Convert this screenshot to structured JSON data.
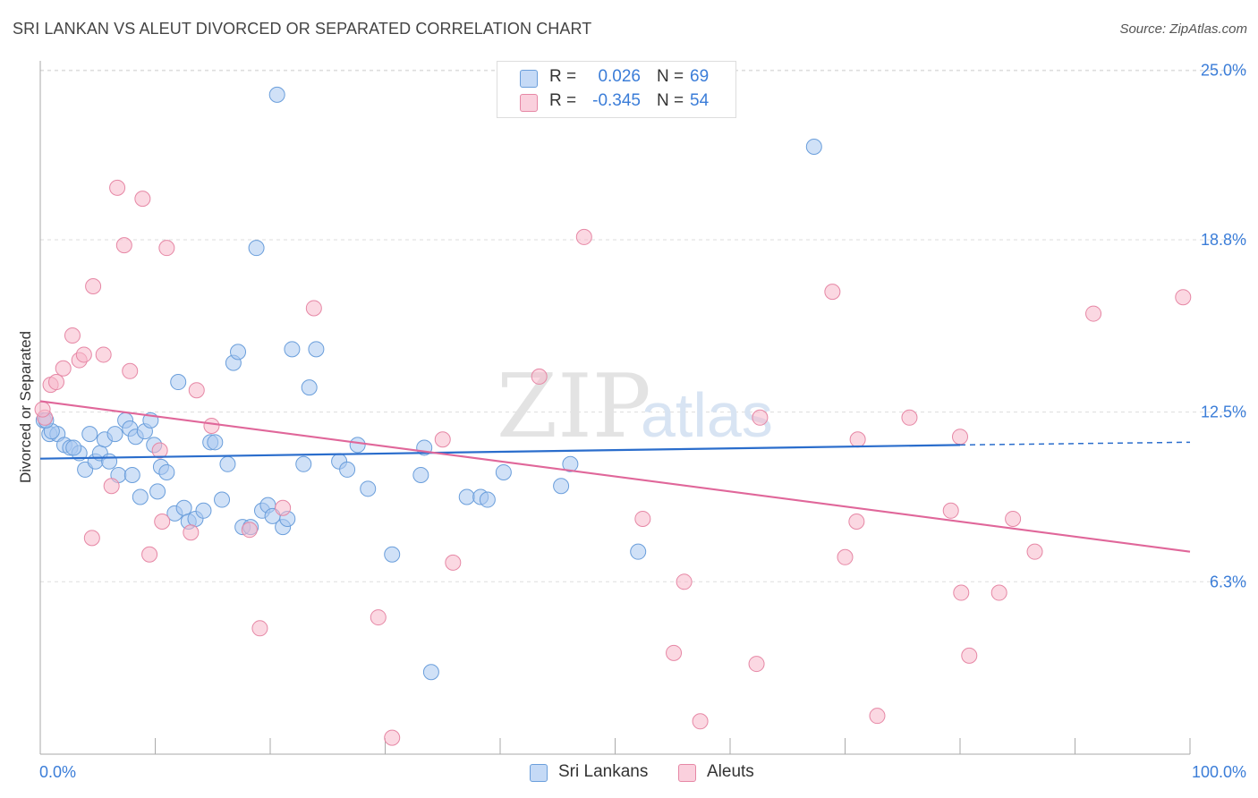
{
  "title": "SRI LANKAN VS ALEUT DIVORCED OR SEPARATED CORRELATION CHART",
  "source": "Source: ZipAtlas.com",
  "watermark": {
    "zip": "ZIP",
    "atlas": "atlas"
  },
  "legend": {
    "rows": [
      {
        "r_label": "R =",
        "r_value": "0.026",
        "n_label": "N =",
        "n_value": "69",
        "color": "#a9c8f0"
      },
      {
        "r_label": "R =",
        "r_value": "-0.345",
        "n_label": "N =",
        "n_value": "54",
        "color": "#f7b8cb"
      }
    ]
  },
  "bottom_legend": {
    "series1": "Sri Lankans",
    "series2": "Aleuts"
  },
  "colors": {
    "blue_fill": "#a9c8f0",
    "blue_stroke": "#6a9edb",
    "blue_line": "#2a6dcc",
    "pink_fill": "#f7b8cb",
    "pink_stroke": "#e687a5",
    "pink_line": "#e0679a",
    "tick_label": "#3b7dd8",
    "grid": "#dddddd"
  },
  "chart_data": {
    "type": "scatter",
    "title": "SRI LANKAN VS ALEUT DIVORCED OR SEPARATED CORRELATION CHART",
    "xlabel": "",
    "ylabel": "Divorced or Separated",
    "xlim": [
      0,
      100
    ],
    "ylim": [
      0,
      25.6
    ],
    "x_tick_labels": [
      "0.0%",
      "100.0%"
    ],
    "y_ticks": [
      6.3,
      12.5,
      18.8,
      25.0
    ],
    "y_tick_labels": [
      "6.3%",
      "12.5%",
      "18.8%",
      "25.0%"
    ],
    "grid": true,
    "legend_position": "top-center",
    "series": [
      {
        "name": "Sri Lankans",
        "trend": {
          "x": [
            0,
            80
          ],
          "y": [
            10.8,
            11.3
          ],
          "dashed_to": [
            100,
            11.4
          ]
        },
        "points": [
          [
            0.3,
            12.2
          ],
          [
            0.8,
            11.7
          ],
          [
            1.5,
            11.7
          ],
          [
            2.1,
            11.3
          ],
          [
            2.6,
            11.2
          ],
          [
            3.4,
            11.0
          ],
          [
            3.9,
            10.4
          ],
          [
            4.3,
            11.7
          ],
          [
            4.8,
            10.7
          ],
          [
            5.2,
            11.0
          ],
          [
            5.6,
            11.5
          ],
          [
            6.0,
            10.7
          ],
          [
            6.5,
            11.7
          ],
          [
            6.8,
            10.2
          ],
          [
            7.4,
            12.2
          ],
          [
            7.8,
            11.9
          ],
          [
            8.0,
            10.2
          ],
          [
            8.3,
            11.6
          ],
          [
            8.7,
            9.4
          ],
          [
            9.1,
            11.8
          ],
          [
            9.6,
            12.2
          ],
          [
            9.9,
            11.3
          ],
          [
            10.2,
            9.6
          ],
          [
            10.5,
            10.5
          ],
          [
            11.0,
            10.3
          ],
          [
            11.7,
            8.8
          ],
          [
            12.0,
            13.6
          ],
          [
            12.5,
            9.0
          ],
          [
            12.9,
            8.5
          ],
          [
            13.5,
            8.6
          ],
          [
            14.2,
            8.9
          ],
          [
            14.8,
            11.4
          ],
          [
            15.2,
            11.4
          ],
          [
            15.8,
            9.3
          ],
          [
            16.3,
            10.6
          ],
          [
            16.8,
            14.3
          ],
          [
            17.2,
            14.7
          ],
          [
            17.6,
            8.3
          ],
          [
            18.3,
            8.3
          ],
          [
            18.8,
            18.5
          ],
          [
            19.3,
            8.9
          ],
          [
            19.8,
            9.1
          ],
          [
            20.2,
            8.7
          ],
          [
            20.6,
            24.1
          ],
          [
            21.1,
            8.3
          ],
          [
            21.5,
            8.6
          ],
          [
            21.9,
            14.8
          ],
          [
            22.9,
            10.6
          ],
          [
            23.4,
            13.4
          ],
          [
            24.0,
            14.8
          ],
          [
            26.0,
            10.7
          ],
          [
            26.7,
            10.4
          ],
          [
            27.6,
            11.3
          ],
          [
            28.5,
            9.7
          ],
          [
            30.6,
            7.3
          ],
          [
            33.1,
            10.2
          ],
          [
            33.4,
            11.2
          ],
          [
            34.0,
            3.0
          ],
          [
            37.1,
            9.4
          ],
          [
            38.3,
            9.4
          ],
          [
            38.9,
            9.3
          ],
          [
            40.3,
            10.3
          ],
          [
            45.3,
            9.8
          ],
          [
            46.1,
            10.6
          ],
          [
            52.0,
            7.4
          ],
          [
            67.3,
            22.2
          ],
          [
            1.0,
            11.8
          ],
          [
            2.9,
            11.2
          ],
          [
            0.5,
            12.2
          ]
        ]
      },
      {
        "name": "Aleuts",
        "trend": {
          "x": [
            0,
            100
          ],
          "y": [
            12.9,
            7.4
          ]
        },
        "points": [
          [
            0.4,
            12.3
          ],
          [
            0.9,
            13.5
          ],
          [
            1.4,
            13.6
          ],
          [
            2.0,
            14.1
          ],
          [
            2.8,
            15.3
          ],
          [
            3.4,
            14.4
          ],
          [
            3.8,
            14.6
          ],
          [
            4.5,
            7.9
          ],
          [
            4.6,
            17.1
          ],
          [
            5.5,
            14.6
          ],
          [
            6.2,
            9.8
          ],
          [
            6.7,
            20.7
          ],
          [
            7.3,
            18.6
          ],
          [
            7.8,
            14.0
          ],
          [
            8.9,
            20.3
          ],
          [
            9.5,
            7.3
          ],
          [
            10.4,
            11.1
          ],
          [
            10.6,
            8.5
          ],
          [
            11.0,
            18.5
          ],
          [
            13.1,
            8.1
          ],
          [
            13.6,
            13.3
          ],
          [
            14.9,
            12.0
          ],
          [
            18.2,
            8.2
          ],
          [
            19.1,
            4.6
          ],
          [
            21.1,
            9.0
          ],
          [
            23.8,
            16.3
          ],
          [
            29.4,
            5.0
          ],
          [
            30.6,
            0.6
          ],
          [
            35.0,
            11.5
          ],
          [
            35.9,
            7.0
          ],
          [
            43.4,
            13.8
          ],
          [
            47.3,
            18.9
          ],
          [
            52.4,
            8.6
          ],
          [
            55.1,
            3.7
          ],
          [
            56.0,
            6.3
          ],
          [
            57.4,
            1.2
          ],
          [
            62.3,
            3.3
          ],
          [
            62.6,
            12.3
          ],
          [
            68.9,
            16.9
          ],
          [
            70.0,
            7.2
          ],
          [
            71.0,
            8.5
          ],
          [
            71.1,
            11.5
          ],
          [
            72.8,
            1.4
          ],
          [
            75.6,
            12.3
          ],
          [
            79.2,
            8.9
          ],
          [
            80.0,
            11.6
          ],
          [
            80.1,
            5.9
          ],
          [
            80.8,
            3.6
          ],
          [
            83.4,
            5.9
          ],
          [
            84.6,
            8.6
          ],
          [
            86.5,
            7.4
          ],
          [
            91.6,
            16.1
          ],
          [
            99.4,
            16.7
          ],
          [
            0.2,
            12.6
          ]
        ]
      }
    ]
  }
}
